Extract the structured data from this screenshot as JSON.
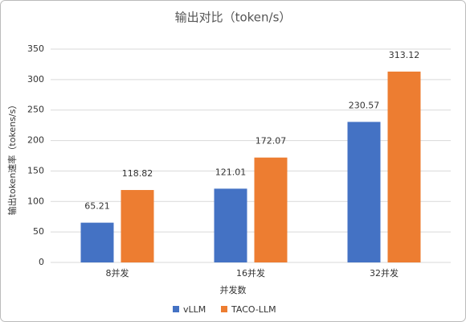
{
  "chart_data": {
    "type": "bar",
    "title": "输出对比（token/s）",
    "x_label": "并发数",
    "y_label": "输出token速率（tokens/s）",
    "categories": [
      "8并发",
      "16并发",
      "32并发"
    ],
    "series": [
      {
        "name": "vLLM",
        "color": "#4472c4",
        "values": [
          65.21,
          121.01,
          230.57
        ]
      },
      {
        "name": "TACO-LLM",
        "color": "#ed7d31",
        "values": [
          118.82,
          172.07,
          313.12
        ]
      }
    ],
    "ylim": [
      0,
      350
    ],
    "yticks": [
      0,
      50,
      100,
      150,
      200,
      250,
      300,
      350
    ],
    "grid": true,
    "legend": "bottom"
  }
}
